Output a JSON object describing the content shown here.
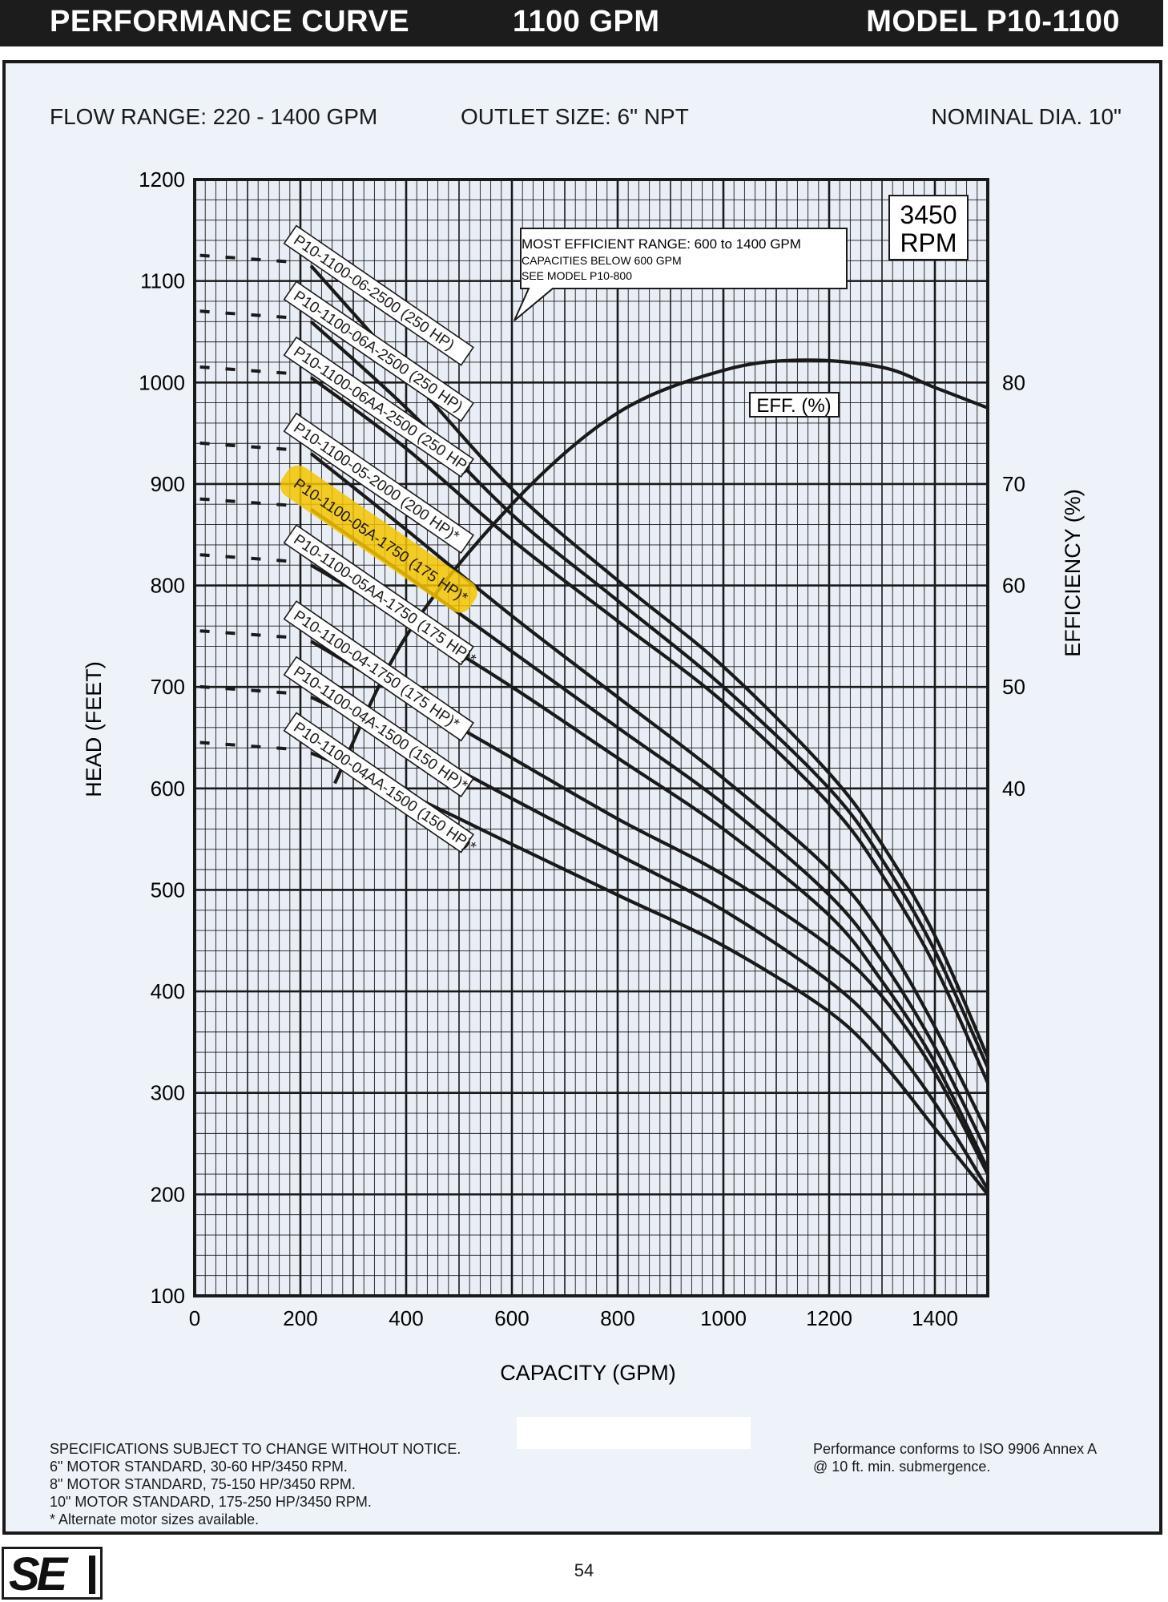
{
  "header": {
    "left": "PERFORMANCE CURVE",
    "center": "1100 GPM",
    "right": "MODEL  P10-1100"
  },
  "specs": {
    "flow_range": "FLOW RANGE: 220 - 1400 GPM",
    "outlet_size": "OUTLET SIZE: 6\" NPT",
    "nominal_dia": "NOMINAL DIA. 10\""
  },
  "rpm_box": {
    "line1": "3450",
    "line2": "RPM"
  },
  "callout": {
    "line1": "MOST EFFICIENT RANGE: 600 to 1400 GPM",
    "line2": "CAPACITIES BELOW 600 GPM",
    "line3": "SEE  MODEL  P10-800"
  },
  "footnotes": {
    "left": [
      "SPECIFICATIONS SUBJECT TO CHANGE WITHOUT NOTICE.",
      "6\" MOTOR STANDARD, 30-60 HP/3450 RPM.",
      "8\" MOTOR STANDARD, 75-150 HP/3450 RPM.",
      "10\" MOTOR STANDARD, 175-250 HP/3450 RPM.",
      "* Alternate motor sizes available."
    ],
    "right": [
      "Performance conforms to ISO 9906 Annex A",
      "@ 10 ft. min. submergence."
    ]
  },
  "page_number": "54",
  "logo_text": "SE",
  "colors": {
    "highlight": "#f5c400",
    "curve": "#1a1a1a",
    "background": "#eef3f9",
    "header": "#1c1c1c"
  },
  "chart_data": {
    "type": "line",
    "xlabel": "CAPACITY (GPM)",
    "ylabel": "HEAD (FEET)",
    "y2label": "EFFICIENCY (%)",
    "xlim": [
      0,
      1500
    ],
    "ylim": [
      100,
      1200
    ],
    "y2lim": [
      40,
      80
    ],
    "xticks": [
      0,
      200,
      400,
      600,
      800,
      1000,
      1200,
      1400
    ],
    "yticks": [
      100,
      200,
      300,
      400,
      500,
      600,
      700,
      800,
      900,
      1000,
      1100,
      1200
    ],
    "y2ticks": [
      40,
      50,
      60,
      70,
      80
    ],
    "grid": true,
    "highlighted_series": "P10-1100-05A-1750 (175 HP)*",
    "series": [
      {
        "name": "P10-1100-06-2500 (250 HP)",
        "x": [
          220,
          400,
          600,
          800,
          1000,
          1200,
          1300,
          1400,
          1500
        ],
        "y": [
          1115,
          1010,
          895,
          805,
          720,
          615,
          545,
          455,
          335
        ]
      },
      {
        "name": "P10-1100-06A-2500 (250 HP)",
        "x": [
          220,
          400,
          600,
          800,
          1000,
          1200,
          1300,
          1400,
          1500
        ],
        "y": [
          1060,
          975,
          870,
          785,
          700,
          600,
          530,
          440,
          325
        ]
      },
      {
        "name": "P10-1100-06AA-2500 (250 HP)",
        "x": [
          220,
          400,
          600,
          800,
          1000,
          1200,
          1300,
          1400,
          1500
        ],
        "y": [
          1005,
          935,
          845,
          765,
          685,
          585,
          515,
          425,
          310
        ]
      },
      {
        "name": "P10-1100-05-2000 (200 HP)*",
        "x": [
          220,
          400,
          600,
          800,
          1000,
          1200,
          1300,
          1400,
          1500
        ],
        "y": [
          930,
          855,
          770,
          690,
          610,
          520,
          455,
          365,
          260
        ]
      },
      {
        "name": "P10-1100-05A-1750 (175 HP)*",
        "x": [
          220,
          400,
          600,
          800,
          1000,
          1200,
          1300,
          1400,
          1500
        ],
        "y": [
          875,
          810,
          735,
          660,
          585,
          495,
          430,
          345,
          240
        ]
      },
      {
        "name": "P10-1100-05AA-1750 (175 HP)*",
        "x": [
          220,
          400,
          600,
          800,
          1000,
          1200,
          1300,
          1400,
          1500
        ],
        "y": [
          820,
          765,
          700,
          630,
          560,
          475,
          410,
          330,
          225
        ]
      },
      {
        "name": "P10-1100-04-1750 (175 HP)*",
        "x": [
          220,
          400,
          600,
          800,
          1000,
          1200,
          1300,
          1400,
          1500
        ],
        "y": [
          745,
          690,
          630,
          570,
          515,
          445,
          395,
          320,
          220
        ]
      },
      {
        "name": "P10-1100-04A-1500 (150 HP)*",
        "x": [
          220,
          400,
          600,
          800,
          1000,
          1200,
          1300,
          1400,
          1500
        ],
        "y": [
          690,
          645,
          590,
          535,
          480,
          410,
          360,
          290,
          205
        ]
      },
      {
        "name": "P10-1100-04AA-1500 (150 HP)*",
        "x": [
          220,
          400,
          600,
          800,
          1000,
          1200,
          1300,
          1400,
          1500
        ],
        "y": [
          635,
          595,
          545,
          495,
          445,
          380,
          330,
          265,
          200
        ]
      }
    ],
    "efficiency": {
      "name": "EFF. (%)",
      "x": [
        265,
        400,
        600,
        800,
        1000,
        1150,
        1300,
        1400,
        1500
      ],
      "y": [
        40.5,
        55,
        68,
        77,
        81.2,
        82.2,
        81.5,
        79.5,
        77.5
      ]
    }
  }
}
